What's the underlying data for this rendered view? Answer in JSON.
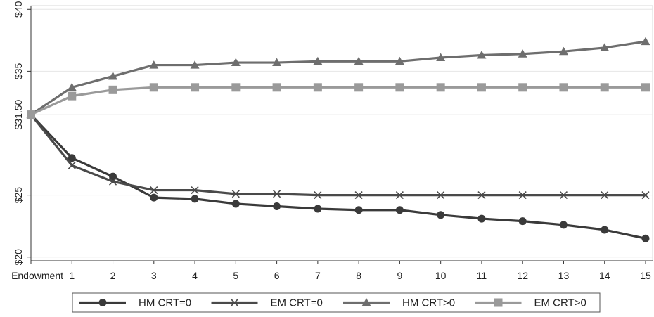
{
  "chart_data": {
    "type": "line",
    "title": "",
    "xlabel": "",
    "ylabel": "",
    "categories": [
      "Endowment",
      "1",
      "2",
      "3",
      "4",
      "5",
      "6",
      "7",
      "8",
      "9",
      "10",
      "11",
      "12",
      "13",
      "14",
      "15"
    ],
    "y_ticks": [
      {
        "value": 40,
        "label": "$40"
      },
      {
        "value": 35,
        "label": "$35"
      },
      {
        "value": 31.5,
        "label": "$31.50"
      },
      {
        "value": 25,
        "label": "$25"
      },
      {
        "value": 20,
        "label": "$20"
      }
    ],
    "ylim": [
      19.7,
      40.3
    ],
    "grid": true,
    "legend_position": "bottom",
    "series": [
      {
        "name": "HM CRT=0",
        "marker": "circle",
        "color": "#3a3a3a",
        "values": [
          31.5,
          28.0,
          26.5,
          24.8,
          24.7,
          24.3,
          24.1,
          23.9,
          23.8,
          23.8,
          23.4,
          23.1,
          22.9,
          22.6,
          22.2,
          21.5
        ]
      },
      {
        "name": "EM CRT=0",
        "marker": "x",
        "color": "#4a4a4a",
        "values": [
          31.5,
          27.4,
          26.1,
          25.4,
          25.4,
          25.1,
          25.1,
          25.0,
          25.0,
          25.0,
          25.0,
          25.0,
          25.0,
          25.0,
          25.0,
          25.0
        ]
      },
      {
        "name": "HM CRT>0",
        "marker": "triangle",
        "color": "#6e6e6e",
        "values": [
          31.5,
          33.7,
          34.6,
          35.5,
          35.5,
          35.7,
          35.7,
          35.8,
          35.8,
          35.8,
          36.1,
          36.3,
          36.4,
          36.6,
          36.9,
          37.4
        ]
      },
      {
        "name": "EM CRT>0",
        "marker": "square",
        "color": "#9a9a9a",
        "values": [
          31.5,
          33.0,
          33.5,
          33.7,
          33.7,
          33.7,
          33.7,
          33.7,
          33.7,
          33.7,
          33.7,
          33.7,
          33.7,
          33.7,
          33.7,
          33.7
        ]
      }
    ]
  }
}
